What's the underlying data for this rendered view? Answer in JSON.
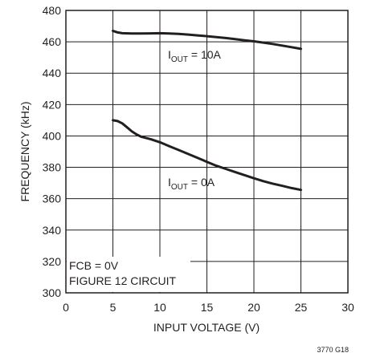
{
  "chart_data": {
    "type": "line",
    "xlabel": "INPUT VOLTAGE (V)",
    "ylabel": "FREQUENCY (kHz)",
    "xlim": [
      0,
      30
    ],
    "ylim": [
      300,
      480
    ],
    "xticks": [
      0,
      5,
      10,
      15,
      20,
      25,
      30
    ],
    "yticks": [
      300,
      320,
      340,
      360,
      380,
      400,
      420,
      440,
      460,
      480
    ],
    "grid": true,
    "series": [
      {
        "label_prefix": "I",
        "label_sub": "OUT",
        "label_suffix": " = 10A",
        "x": [
          5,
          5.5,
          6,
          7,
          8,
          9,
          10,
          11,
          12,
          13,
          14,
          15,
          16,
          17,
          18,
          19,
          20,
          21,
          22,
          23,
          24,
          25
        ],
        "y": [
          467,
          466,
          465.5,
          465.3,
          465.3,
          465.4,
          465.5,
          465.3,
          465,
          464.6,
          464.1,
          463.6,
          463,
          462.4,
          461.7,
          461,
          460.3,
          459.5,
          458.6,
          457.6,
          456.6,
          455.5
        ]
      },
      {
        "label_prefix": "I",
        "label_sub": "OUT",
        "label_suffix": " = 0A",
        "x": [
          5,
          5.5,
          6,
          6.5,
          7,
          7.5,
          8,
          9,
          10,
          11,
          12,
          13,
          14,
          15,
          16,
          17,
          18,
          19,
          20,
          21,
          22,
          23,
          24,
          25
        ],
        "y": [
          410,
          409.5,
          408,
          405.5,
          403,
          401,
          399.5,
          398,
          396,
          393.5,
          391,
          388.5,
          386,
          383.5,
          381,
          379,
          377,
          375,
          373,
          371.2,
          369.6,
          368.2,
          366.8,
          365.6
        ]
      }
    ],
    "annotations": [
      "FCB = 0V",
      "FIGURE 12 CIRCUIT"
    ],
    "figure_id": "3770 G18"
  }
}
